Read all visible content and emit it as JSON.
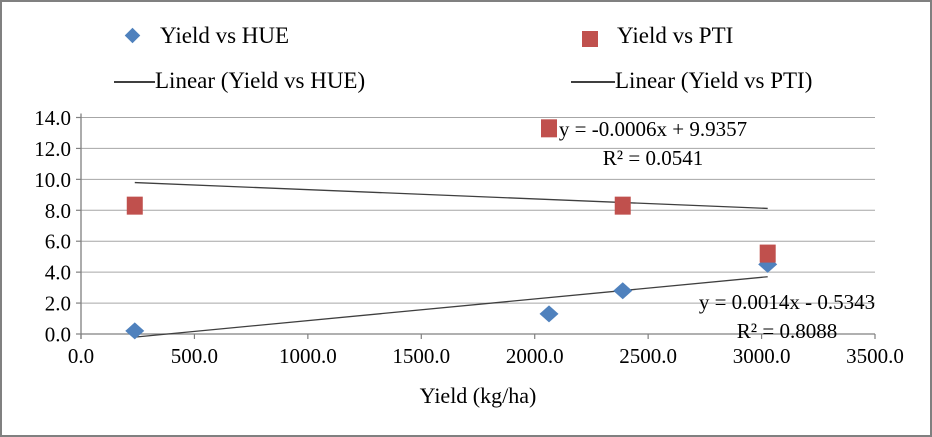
{
  "colors": {
    "hue_series": "#4F81BD",
    "pti_series": "#C0504D",
    "trendline": "#3f3f3f",
    "gridline": "#a6a6a6",
    "axis": "#808080",
    "chart_border": "#808080",
    "background": "#ffffff"
  },
  "chart_data": {
    "type": "scatter",
    "title": "",
    "xlabel": "Yield (kg/ha)",
    "ylabel": "",
    "xlim": [
      0,
      3500
    ],
    "ylim": [
      0,
      14
    ],
    "grid": true,
    "legend_position": "top",
    "x_tick_labels": [
      "0.0",
      "500.0",
      "1000.0",
      "1500.0",
      "2000.0",
      "2500.0",
      "3000.0",
      "3500.0"
    ],
    "y_tick_labels": [
      "0.0",
      "2.0",
      "4.0",
      "6.0",
      "8.0",
      "10.0",
      "12.0",
      "14.0"
    ],
    "series": [
      {
        "name": "Yield vs HUE",
        "marker": "diamond",
        "color": "#4F81BD",
        "points": [
          [
            237,
            0.2
          ],
          [
            2063,
            1.3
          ],
          [
            2388,
            2.8
          ],
          [
            3027,
            4.5
          ]
        ]
      },
      {
        "name": "Yield vs PTI",
        "marker": "square",
        "color": "#C0504D",
        "points": [
          [
            237,
            8.3
          ],
          [
            2063,
            13.3
          ],
          [
            2388,
            8.3
          ],
          [
            3027,
            5.2
          ]
        ]
      }
    ],
    "trendlines": [
      {
        "name": "Linear (Yield vs HUE)",
        "series": "Yield vs HUE",
        "slope": 0.0014,
        "intercept": -0.5343,
        "r2": 0.8088,
        "x_range": [
          237,
          3027
        ],
        "equation_label": "y = 0.0014x - 0.5343",
        "r2_label": "R² = 0.8088"
      },
      {
        "name": "Linear (Yield vs PTI)",
        "series": "Yield vs PTI",
        "slope": -0.0006,
        "intercept": 9.9357,
        "r2": 0.0541,
        "x_range": [
          237,
          3027
        ],
        "equation_label": "y = -0.0006x + 9.9357",
        "r2_label": "R² = 0.0541"
      }
    ]
  }
}
